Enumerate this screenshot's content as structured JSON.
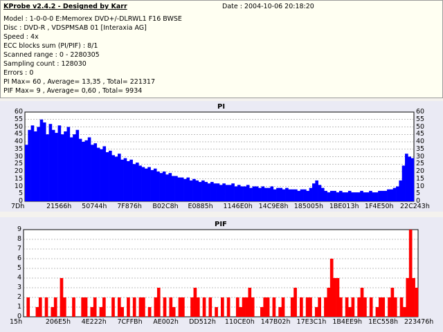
{
  "header": {
    "title": "KProbe v2.4.2 - Designed by Karr",
    "date": "Date : 2004-10-06 20:18:20",
    "lines": [
      "Model : 1-0-0-0 E:Memorex DVD+/-DLRWL1 F16 BWSE",
      "Disc : DVD-R , VDSPMSAB 01 [Interaxia AG]",
      "Speed : 4x",
      "ECC blocks sum (PI/PIF) : 8/1",
      "Scanned range : 0 - 2280305",
      "Sampling count : 128030",
      "Errors : 0",
      "PI Max= 60 , Average= 13,35 , Total= 221317",
      "PIF Max= 9 , Average= 0,60 , Total= 9934"
    ]
  },
  "chart_data": [
    {
      "type": "bar",
      "title": "PI",
      "color": "#0000ff",
      "ylim": [
        0,
        60
      ],
      "yticks": [
        0,
        5,
        10,
        15,
        20,
        25,
        30,
        35,
        40,
        45,
        50,
        55,
        60
      ],
      "xticks": [
        "7Dh",
        "21566h",
        "50744h",
        "7F876h",
        "B02C8h",
        "E0885h",
        "1146E0h",
        "14C9E8h",
        "185005h",
        "1BE013h",
        "1F4E50h",
        "22C243h"
      ],
      "grid": true,
      "values": [
        38,
        48,
        51,
        47,
        50,
        55,
        53,
        45,
        52,
        48,
        46,
        51,
        45,
        47,
        50,
        43,
        45,
        48,
        42,
        40,
        41,
        43,
        38,
        39,
        36,
        35,
        37,
        33,
        34,
        31,
        30,
        32,
        28,
        29,
        27,
        28,
        25,
        26,
        24,
        23,
        22,
        23,
        21,
        22,
        20,
        19,
        20,
        18,
        19,
        17,
        17,
        16,
        16,
        15,
        16,
        14,
        15,
        14,
        13,
        14,
        13,
        12,
        13,
        12,
        12,
        11,
        12,
        11,
        11,
        12,
        10,
        11,
        10,
        10,
        11,
        9,
        10,
        10,
        9,
        10,
        9,
        9,
        10,
        8,
        9,
        9,
        8,
        9,
        8,
        8,
        8,
        7,
        8,
        8,
        7,
        9,
        12,
        14,
        11,
        9,
        7,
        6,
        7,
        7,
        6,
        7,
        6,
        6,
        7,
        6,
        6,
        6,
        7,
        6,
        6,
        7,
        6,
        6,
        7,
        7,
        7,
        8,
        8,
        9,
        10,
        14,
        24,
        32,
        30,
        29
      ]
    },
    {
      "type": "bar",
      "title": "PIF",
      "color": "#ff0000",
      "ylim": [
        0,
        9
      ],
      "yticks": [
        0,
        1,
        2,
        3,
        4,
        5,
        6,
        7,
        8,
        9
      ],
      "xticks": [
        "15h",
        "206E5h",
        "4E222h",
        "7CFFBh",
        "AE002h",
        "DD512h",
        "110CE0h",
        "147B02h",
        "17E3C1h",
        "1B4EE9h",
        "1EC558h",
        "223476h"
      ],
      "grid": true,
      "values": [
        0,
        2,
        0,
        0,
        1,
        2,
        0,
        2,
        0,
        1,
        2,
        0,
        4,
        2,
        0,
        0,
        2,
        0,
        0,
        2,
        2,
        0,
        1,
        2,
        0,
        1,
        2,
        0,
        0,
        2,
        0,
        2,
        1,
        0,
        2,
        0,
        2,
        0,
        2,
        2,
        0,
        1,
        0,
        2,
        3,
        0,
        2,
        0,
        2,
        1,
        0,
        2,
        2,
        0,
        0,
        2,
        3,
        2,
        0,
        2,
        0,
        2,
        0,
        1,
        0,
        2,
        0,
        2,
        0,
        0,
        2,
        1,
        2,
        2,
        3,
        2,
        0,
        0,
        1,
        2,
        2,
        0,
        2,
        0,
        1,
        2,
        0,
        0,
        2,
        3,
        0,
        2,
        0,
        2,
        2,
        0,
        1,
        2,
        0,
        2,
        3,
        6,
        4,
        4,
        2,
        0,
        2,
        1,
        2,
        0,
        2,
        3,
        2,
        0,
        2,
        0,
        1,
        2,
        2,
        0,
        2,
        3,
        2,
        0,
        2,
        1,
        4,
        9,
        4,
        3
      ]
    }
  ]
}
